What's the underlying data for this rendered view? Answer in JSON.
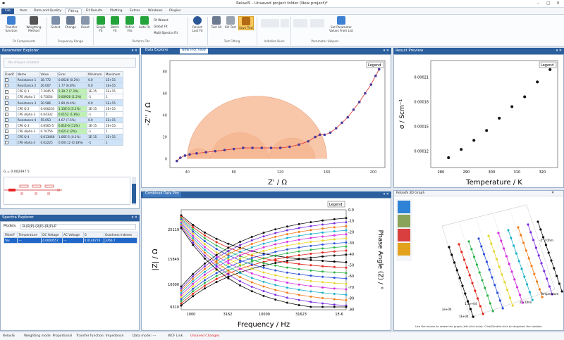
{
  "window": {
    "title": "RelaxIS - Unsaved project folder (New project)*"
  },
  "menu": [
    "File",
    "Item",
    "Data and Quality",
    "Fitting",
    "Fit Results",
    "Plotting",
    "Extras",
    "Windows",
    "Plugins"
  ],
  "menu_active": "Fitting",
  "ribbon": {
    "buttons": [
      {
        "label": "Transfer function",
        "icon": "transfer-function-icon"
      },
      {
        "label": "Weighting Method",
        "icon": "weighting-icon"
      },
      {
        "label": "Select",
        "icon": "select-icon"
      },
      {
        "label": "Change",
        "icon": "change-icon"
      },
      {
        "label": "Reset",
        "icon": "reset-icon"
      },
      {
        "label": "Single Fit",
        "icon": "play-icon"
      },
      {
        "label": "Batch Fit",
        "icon": "batch-play-icon"
      },
      {
        "label": "Refine Fits",
        "icon": "refine-icon"
      },
      {
        "label": "Auto Fit",
        "icon": "auto-fit-icon"
      },
      {
        "label": "Revert Last Fit",
        "icon": "revert-icon"
      },
      {
        "label": "Test All",
        "icon": "test-all-icon"
      },
      {
        "label": "Kill Test",
        "icon": "kill-icon"
      },
      {
        "label": "Save Test",
        "icon": "save-test-icon"
      },
      {
        "label": "Set Parameter Values From List",
        "icon": "parameter-list-icon"
      }
    ],
    "small_buttons": [
      "Fit Wizard",
      "Global Fit",
      "Multi-Spectra Fit"
    ],
    "groups": [
      "Fit Components",
      "Frequency Range",
      "Perform Fits",
      "Test Fitting",
      "Initialize Runs",
      "Parameter Helpers"
    ]
  },
  "param_explorer": {
    "title": "Parameter Explorer",
    "placeholder": "No shapes created",
    "columns": [
      "Fixed?",
      "Name",
      "Value",
      "Error",
      "Minimum",
      "Maximum"
    ],
    "rows": [
      [
        "Resistance 1",
        "38.772",
        "0.0628 (0.2%)",
        "0.0",
        "1E+15"
      ],
      [
        "Resistance 2",
        "26.007",
        "1.77 (6.8%)",
        "0.0",
        "1E+15"
      ],
      [
        "CPE Q 1",
        "7.2045-5",
        "5.30-7 (7.3%)",
        "1E-15",
        "1E+15"
      ],
      [
        "CPE Alpha 1",
        "0.75054",
        "0.00926 (1.2%)",
        "-1",
        "1"
      ],
      [
        "Resistance 3",
        "30.586",
        "2.89 (9.4%)",
        "0.0",
        "1E+15"
      ],
      [
        "CPE Q 2",
        "0.000233",
        "1.15E-5 (5.1%)",
        "1E-15",
        "1E+15"
      ],
      [
        "CPE Alpha 2",
        "0.64332",
        "0.0152 (1.8%)",
        "-1",
        "1"
      ],
      [
        "Resistance 4",
        "55.053",
        "4.67 (7.5%)",
        "0.0",
        "1E+15"
      ],
      [
        "CPE Q 3",
        "4.8565-5",
        "6.81E-6 (12%)",
        "1E-15",
        "1E+15"
      ],
      [
        "CPE Alpha 3",
        "0.76756",
        "0.0214 (2%)",
        "-1",
        "1"
      ],
      [
        "CPE Q 4",
        "0.013466",
        "1.66E-5 (0.1%)",
        "1E-15",
        "1E+15"
      ],
      [
        "CPE Alpha 4",
        "0.62225",
        "0.00112 (0.18%)",
        "-1",
        "1"
      ]
    ],
    "chi": "G = 0.002497 5"
  },
  "spectra_explorer": {
    "title": "Spectra Explorer",
    "models_label": "Models:",
    "model": "R-(R|P)-(R|P)-(R|P)-P",
    "columns": [
      "Fitted?",
      "Temperature",
      "DC Voltage",
      "AC Voltage",
      "G",
      "Goodness Indexes"
    ],
    "row": [
      "Yes",
      "---",
      "4.0000557",
      "---",
      "0.0146776",
      "3766.7"
    ]
  },
  "data_explorer": {
    "tab1": "Data Explorer",
    "tab2": "New Plot View",
    "legend": "Legend",
    "xlabel": "Z' / Ω",
    "ylabel": "-Z'' / Ω",
    "xticks": [
      "40",
      "80",
      "120",
      "160",
      "200"
    ],
    "yticks": [
      "0",
      "20",
      "40",
      "60",
      "80"
    ]
  },
  "result_preview": {
    "title": "Result Preview",
    "legend": "Legend",
    "xlabel": "Temperature / K",
    "ylabel": "σ / Scm⁻¹",
    "xticks": [
      "280",
      "290",
      "300",
      "310",
      "320"
    ],
    "yticks": [
      "0.00012",
      "0.00015",
      "0.00018",
      "0.00021"
    ]
  },
  "combined_plot": {
    "title": "Combined Data Plot",
    "legend": "Legend",
    "xlabel": "Frequency / Hz",
    "ylabel": "|Z| / Ω",
    "y2label": "Phase Angle (Z) / °",
    "xticks": [
      "1000",
      "3162",
      "10000",
      "31623",
      "1E-6"
    ],
    "yticks": [
      "25119",
      "15849",
      "10000",
      "6310"
    ],
    "y2ticks": [
      "0.0",
      "-10",
      "-20",
      "-30",
      "-40",
      "-50",
      "-60",
      "-70",
      "-80",
      "-90"
    ]
  },
  "graph3d": {
    "title": "RelaxIS 3D Graph",
    "hint": "Use the mouse to rotate the graph (left-click-hold). Click/Double-click to stop/start the rotation.",
    "labels": [
      "Temperature",
      "Z' / Ohm",
      "-Z'' / Ohm",
      "1E+04",
      "2e+04",
      "1.5e+04"
    ]
  },
  "status": [
    "RelaxIS",
    "Weighting mode: Proportional",
    "Transfer function: Impedance",
    "Data mode: ---",
    "WCF Link",
    "Unsaved Changes"
  ],
  "chart_data": [
    {
      "type": "scatter",
      "title": "",
      "xlabel": "Z' / Ω",
      "ylabel": "-Z'' / Ω",
      "xlim": [
        25,
        210
      ],
      "ylim": [
        -8,
        90
      ],
      "series": [
        {
          "values": [
            [
              31,
              -2
            ],
            [
              34,
              1
            ],
            [
              38,
              3
            ],
            [
              42,
              4
            ],
            [
              48,
              5
            ],
            [
              56,
              6
            ],
            [
              64,
              7
            ],
            [
              72,
              8
            ],
            [
              80,
              9
            ],
            [
              88,
              10
            ],
            [
              96,
              10
            ],
            [
              104,
              10
            ],
            [
              112,
              10
            ],
            [
              120,
              10
            ],
            [
              128,
              11
            ],
            [
              136,
              13
            ],
            [
              144,
              16
            ],
            [
              150,
              20
            ],
            [
              154,
              22
            ],
            [
              158,
              22
            ],
            [
              163,
              24
            ],
            [
              168,
              28
            ],
            [
              173,
              33
            ],
            [
              178,
              38
            ],
            [
              183,
              45
            ],
            [
              188,
              52
            ],
            [
              193,
              60
            ],
            [
              198,
              68
            ],
            [
              202,
              76
            ],
            [
              205,
              82
            ]
          ]
        }
      ]
    },
    {
      "type": "scatter",
      "title": "",
      "xlabel": "Temperature / K",
      "ylabel": "σ / Scm⁻¹",
      "xlim": [
        276,
        326
      ],
      "ylim": [
        0.0001,
        0.00023
      ],
      "series": [
        {
          "values": [
            [
              283,
              0.000112
            ],
            [
              288,
              0.000122
            ],
            [
              293,
              0.000133
            ],
            [
              298,
              0.000145
            ],
            [
              303,
              0.00016
            ],
            [
              308,
              0.000174
            ],
            [
              313,
              0.000186
            ],
            [
              318,
              0.000204
            ],
            [
              323,
              0.000219
            ]
          ]
        }
      ]
    },
    {
      "type": "line",
      "title": "",
      "xlabel": "Frequency / Hz",
      "ylabel": "|Z| / Ω",
      "series_count": 10,
      "colors": [
        "#000000",
        "#e1251b",
        "#2db34a",
        "#2a4fd6",
        "#e6d52c",
        "#d72ee0",
        "#1bb0c9",
        "#f07d18",
        "#7a2ee0",
        "#111111"
      ]
    }
  ]
}
